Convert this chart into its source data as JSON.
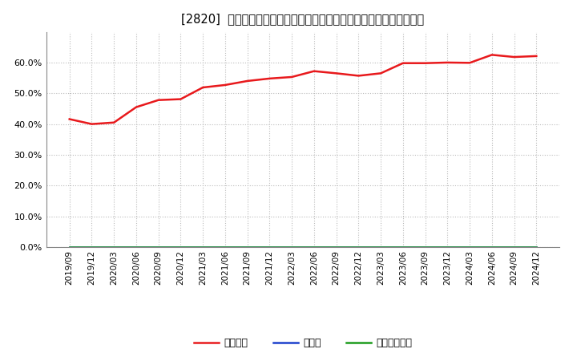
{
  "title": "[2820]  自己資本、のれん、繰延税金資産の総資産に対する比率の推移",
  "background_color": "#ffffff",
  "plot_background_color": "#ffffff",
  "grid_color": "#bbbbbb",
  "x_labels": [
    "2019/09",
    "2019/12",
    "2020/03",
    "2020/06",
    "2020/09",
    "2020/12",
    "2021/03",
    "2021/06",
    "2021/09",
    "2021/12",
    "2022/03",
    "2022/06",
    "2022/09",
    "2022/12",
    "2023/03",
    "2023/06",
    "2023/09",
    "2023/12",
    "2024/03",
    "2024/06",
    "2024/09",
    "2024/12"
  ],
  "equity_ratio": [
    0.416,
    0.4,
    0.405,
    0.455,
    0.478,
    0.481,
    0.519,
    0.527,
    0.54,
    0.548,
    0.553,
    0.572,
    0.565,
    0.557,
    0.565,
    0.598,
    0.598,
    0.6,
    0.599,
    0.625,
    0.618,
    0.621
  ],
  "goodwill_ratio": [
    0.0,
    0.0,
    0.0,
    0.0,
    0.0,
    0.0,
    0.0,
    0.0,
    0.0,
    0.0,
    0.0,
    0.0,
    0.0,
    0.0,
    0.0,
    0.0,
    0.0,
    0.0,
    0.0,
    0.0,
    0.0,
    0.0
  ],
  "deferred_tax_ratio": [
    0.0,
    0.0,
    0.0,
    0.0,
    0.0,
    0.0,
    0.0,
    0.0,
    0.0,
    0.0,
    0.0,
    0.0,
    0.0,
    0.0,
    0.0,
    0.0,
    0.0,
    0.0,
    0.0,
    0.0,
    0.0,
    0.0
  ],
  "equity_color": "#e8191c",
  "goodwill_color": "#1a3fcc",
  "deferred_tax_color": "#1a9b1a",
  "ylim": [
    0.0,
    0.7
  ],
  "yticks": [
    0.0,
    0.1,
    0.2,
    0.3,
    0.4,
    0.5,
    0.6
  ],
  "legend_labels": [
    "自己資本",
    "のれん",
    "繰延税金資産"
  ],
  "line_width": 1.8,
  "title_prefix": "[2820]  ",
  "title_body": "自己資本、のれん、繰延税金資産の総資産に対する比率の推移"
}
